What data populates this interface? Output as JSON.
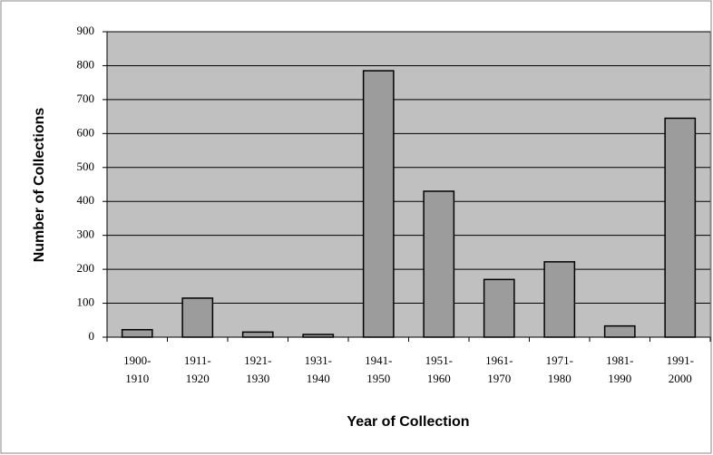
{
  "chart_data": {
    "type": "bar",
    "x_label": "Year of Collection",
    "y_label": "Number of Collections",
    "categories": [
      "1900-\n1910",
      "1911-\n1920",
      "1921-\n1930",
      "1931-\n1940",
      "1941-\n1950",
      "1951-\n1960",
      "1961-\n1970",
      "1971-\n1980",
      "1981-\n1990",
      "1991-\n2000"
    ],
    "values": [
      22,
      115,
      15,
      8,
      785,
      430,
      170,
      222,
      33,
      645
    ],
    "color": "#9c9c9c",
    "plot_background": "#c0c0c0",
    "ylim": [
      0,
      900
    ],
    "yticks": [
      0,
      100,
      200,
      300,
      400,
      500,
      600,
      700,
      800,
      900
    ],
    "grid": true
  }
}
